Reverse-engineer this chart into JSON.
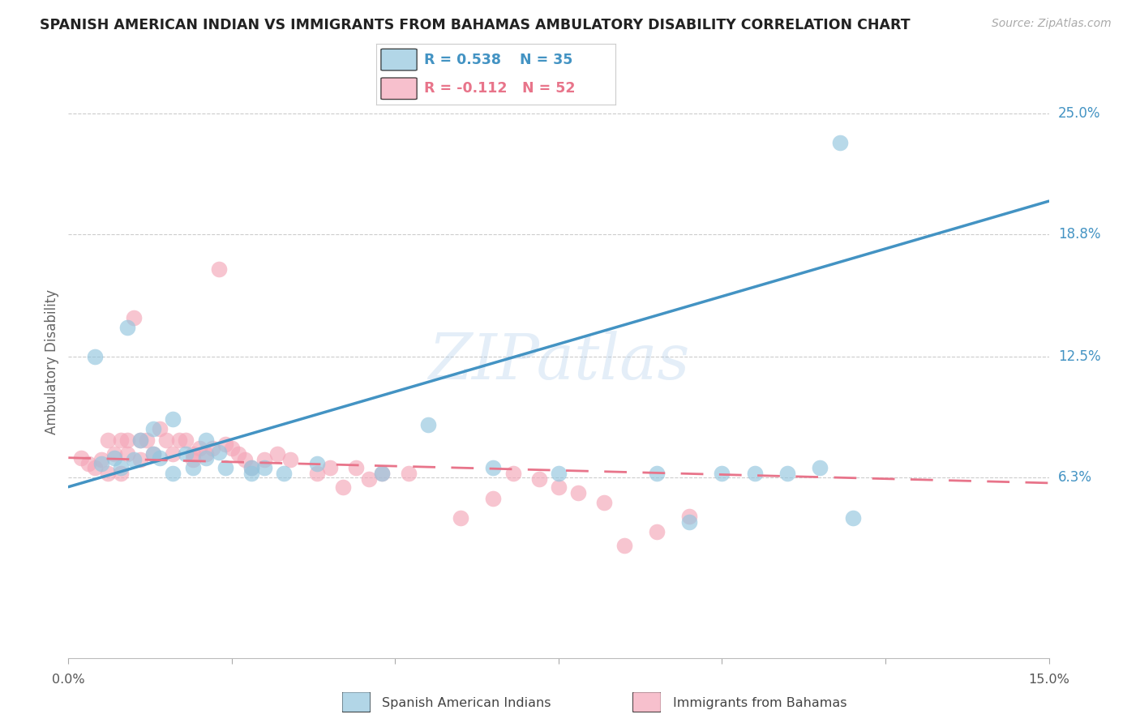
{
  "title": "SPANISH AMERICAN INDIAN VS IMMIGRANTS FROM BAHAMAS AMBULATORY DISABILITY CORRELATION CHART",
  "source": "Source: ZipAtlas.com",
  "ylabel": "Ambulatory Disability",
  "ytick_labels": [
    "25.0%",
    "18.8%",
    "12.5%",
    "6.3%"
  ],
  "ytick_values": [
    0.25,
    0.188,
    0.125,
    0.063
  ],
  "xmin": 0.0,
  "xmax": 0.15,
  "ymin": -0.03,
  "ymax": 0.275,
  "color_blue": "#92c5de",
  "color_pink": "#f4a6b8",
  "color_blue_line": "#4393c3",
  "color_pink_line": "#e8748a",
  "watermark": "ZIPatlas",
  "blue_line_x0": 0.0,
  "blue_line_y0": 0.058,
  "blue_line_x1": 0.15,
  "blue_line_y1": 0.205,
  "pink_line_x0": 0.0,
  "pink_line_y0": 0.073,
  "pink_line_x1": 0.15,
  "pink_line_y1": 0.06,
  "blue_scatter_x": [
    0.004,
    0.009,
    0.01,
    0.011,
    0.013,
    0.014,
    0.016,
    0.018,
    0.019,
    0.021,
    0.023,
    0.024,
    0.005,
    0.007,
    0.008,
    0.013,
    0.016,
    0.021,
    0.028,
    0.03,
    0.033,
    0.055,
    0.065,
    0.075,
    0.09,
    0.095,
    0.1,
    0.105,
    0.11,
    0.115,
    0.12,
    0.118,
    0.028,
    0.038,
    0.048
  ],
  "blue_scatter_y": [
    0.125,
    0.14,
    0.072,
    0.082,
    0.088,
    0.073,
    0.093,
    0.075,
    0.068,
    0.082,
    0.076,
    0.068,
    0.07,
    0.073,
    0.068,
    0.075,
    0.065,
    0.073,
    0.065,
    0.068,
    0.065,
    0.09,
    0.068,
    0.065,
    0.065,
    0.04,
    0.065,
    0.065,
    0.065,
    0.068,
    0.042,
    0.235,
    0.068,
    0.07,
    0.065
  ],
  "pink_scatter_x": [
    0.002,
    0.003,
    0.004,
    0.005,
    0.006,
    0.006,
    0.007,
    0.008,
    0.008,
    0.009,
    0.009,
    0.01,
    0.011,
    0.011,
    0.012,
    0.013,
    0.014,
    0.015,
    0.016,
    0.017,
    0.018,
    0.019,
    0.019,
    0.02,
    0.021,
    0.022,
    0.023,
    0.024,
    0.025,
    0.026,
    0.027,
    0.028,
    0.03,
    0.032,
    0.034,
    0.038,
    0.04,
    0.042,
    0.044,
    0.046,
    0.048,
    0.052,
    0.06,
    0.065,
    0.068,
    0.072,
    0.075,
    0.078,
    0.082,
    0.085,
    0.09,
    0.095
  ],
  "pink_scatter_y": [
    0.073,
    0.07,
    0.068,
    0.072,
    0.082,
    0.065,
    0.075,
    0.082,
    0.065,
    0.082,
    0.075,
    0.145,
    0.082,
    0.072,
    0.082,
    0.075,
    0.088,
    0.082,
    0.075,
    0.082,
    0.082,
    0.075,
    0.072,
    0.078,
    0.075,
    0.078,
    0.17,
    0.08,
    0.078,
    0.075,
    0.072,
    0.068,
    0.072,
    0.075,
    0.072,
    0.065,
    0.068,
    0.058,
    0.068,
    0.062,
    0.065,
    0.065,
    0.042,
    0.052,
    0.065,
    0.062,
    0.058,
    0.055,
    0.05,
    0.028,
    0.035,
    0.043
  ]
}
